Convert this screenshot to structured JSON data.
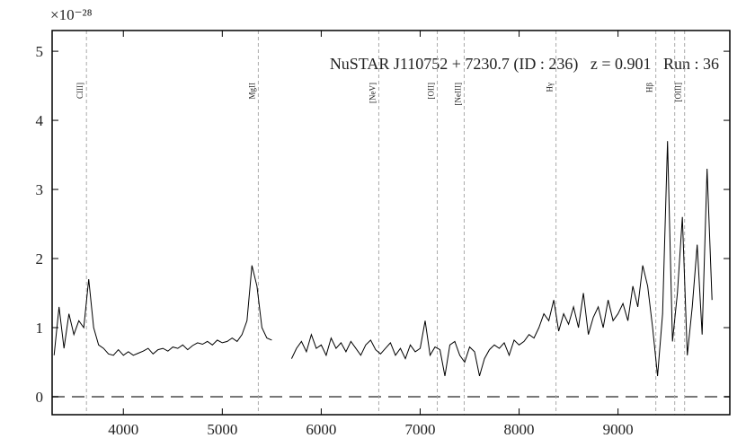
{
  "chart_data": {
    "type": "line",
    "title": "NuSTAR J110752 + 7230.7 (ID : 236)   z = 0.901   Run : 36",
    "y_multiplier": "×10⁻²⁸",
    "color": "#000000",
    "xlim": [
      3280,
      10130
    ],
    "ylim": [
      -0.26,
      5.3
    ],
    "xticks": [
      4000,
      5000,
      6000,
      7000,
      8000,
      9000
    ],
    "yticks": [
      0,
      1,
      2,
      3,
      4,
      5
    ],
    "hline": 0,
    "lines": [
      {
        "value": 3627,
        "label": "CIII]"
      },
      {
        "value": 5364,
        "label": "MgII"
      },
      {
        "value": 6582,
        "label": "[NeV]"
      },
      {
        "value": 7173,
        "label": "[OII]"
      },
      {
        "value": 7445,
        "label": "[NeIII]"
      },
      {
        "value": 8373,
        "label": "Hγ"
      },
      {
        "value": 9382,
        "label": "Hβ"
      },
      {
        "value": 9573
      },
      {
        "value": 9673,
        "label": "[OIII]"
      }
    ],
    "x": [
      3300,
      3350,
      3400,
      3450,
      3500,
      3550,
      3600,
      3650,
      3700,
      3750,
      3800,
      3850,
      3900,
      3950,
      4000,
      4050,
      4100,
      4150,
      4200,
      4250,
      4300,
      4350,
      4400,
      4450,
      4500,
      4550,
      4600,
      4650,
      4700,
      4750,
      4800,
      4850,
      4900,
      4950,
      5000,
      5050,
      5100,
      5150,
      5200,
      5250,
      5300,
      5350,
      5400,
      5450,
      5500,
      5550,
      5600,
      5650,
      5700,
      5750,
      5800,
      5850,
      5900,
      5950,
      6000,
      6050,
      6100,
      6150,
      6200,
      6250,
      6300,
      6350,
      6400,
      6450,
      6500,
      6550,
      6600,
      6650,
      6700,
      6750,
      6800,
      6850,
      6900,
      6950,
      7000,
      7050,
      7100,
      7150,
      7200,
      7250,
      7300,
      7350,
      7400,
      7450,
      7500,
      7550,
      7600,
      7650,
      7700,
      7750,
      7800,
      7850,
      7900,
      7950,
      8000,
      8050,
      8100,
      8150,
      8200,
      8250,
      8300,
      8350,
      8400,
      8450,
      8500,
      8550,
      8600,
      8650,
      8700,
      8750,
      8800,
      8850,
      8900,
      8950,
      9000,
      9050,
      9100,
      9150,
      9200,
      9250,
      9300,
      9350,
      9400,
      9450,
      9500,
      9550,
      9600,
      9650,
      9700,
      9750,
      9800,
      9850,
      9900,
      9950
    ],
    "values": [
      0.6,
      1.3,
      0.7,
      1.2,
      0.9,
      1.1,
      1.0,
      1.7,
      1.0,
      0.75,
      0.7,
      0.62,
      0.6,
      0.68,
      0.6,
      0.65,
      0.6,
      0.63,
      0.66,
      0.7,
      0.62,
      0.68,
      0.7,
      0.66,
      0.72,
      0.7,
      0.75,
      0.68,
      0.74,
      0.78,
      0.76,
      0.8,
      0.75,
      0.82,
      0.78,
      0.8,
      0.85,
      0.8,
      0.9,
      1.1,
      1.9,
      1.6,
      1.0,
      0.85,
      0.82,
      null,
      null,
      null,
      0.55,
      0.7,
      0.8,
      0.65,
      0.9,
      0.7,
      0.75,
      0.6,
      0.85,
      0.7,
      0.78,
      0.65,
      0.8,
      0.7,
      0.6,
      0.75,
      0.82,
      0.68,
      0.62,
      0.7,
      0.78,
      0.6,
      0.7,
      0.55,
      0.75,
      0.65,
      0.7,
      1.1,
      0.6,
      0.72,
      0.68,
      0.3,
      0.75,
      0.8,
      0.6,
      0.5,
      0.72,
      0.65,
      0.3,
      0.55,
      0.68,
      0.75,
      0.7,
      0.78,
      0.6,
      0.82,
      0.75,
      0.8,
      0.9,
      0.85,
      1.0,
      1.2,
      1.1,
      1.4,
      0.95,
      1.2,
      1.05,
      1.3,
      1.0,
      1.5,
      0.9,
      1.15,
      1.3,
      1.0,
      1.4,
      1.1,
      1.2,
      1.35,
      1.1,
      1.6,
      1.3,
      1.9,
      1.6,
      1.0,
      0.3,
      1.2,
      3.7,
      0.8,
      1.5,
      2.6,
      0.6,
      1.3,
      2.2,
      0.9,
      3.3,
      1.4
    ]
  }
}
